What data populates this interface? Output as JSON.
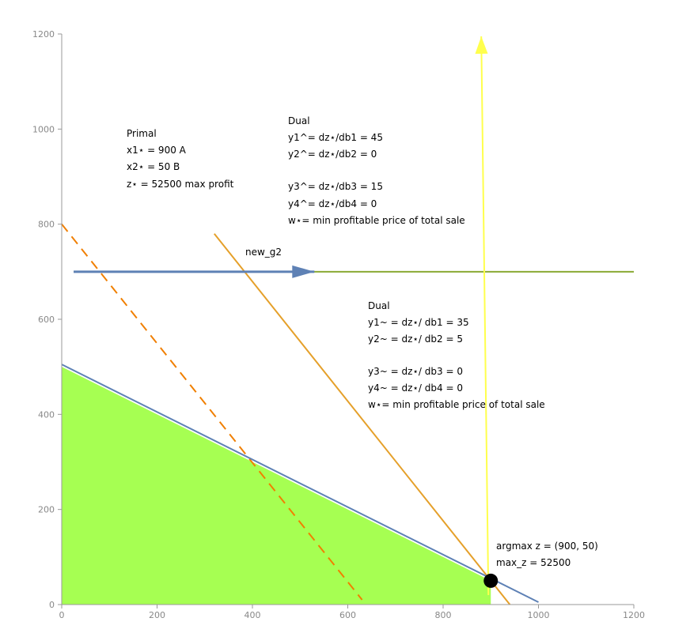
{
  "chart_data": {
    "type": "line",
    "xlim": [
      0,
      1200
    ],
    "ylim": [
      0,
      1200
    ],
    "x_ticks": [
      0,
      200,
      400,
      600,
      800,
      1000,
      1200
    ],
    "y_ticks": [
      0,
      200,
      400,
      600,
      800,
      1000,
      1200
    ],
    "grid": false,
    "feasible_region": {
      "color": "#a6ff52",
      "vertices": [
        [
          0,
          0
        ],
        [
          0,
          500
        ],
        [
          900,
          50
        ],
        [
          900,
          0
        ]
      ]
    },
    "series": [
      {
        "line": "blue-constraint",
        "color": "#5e81b5",
        "style": "solid",
        "points": [
          [
            0,
            505
          ],
          [
            1000,
            5
          ]
        ]
      },
      {
        "line": "orange-dashed",
        "color": "#f07f00",
        "style": "dashed",
        "points": [
          [
            0,
            800
          ],
          [
            630,
            10
          ]
        ]
      },
      {
        "line": "orange-solid",
        "color": "#e5a02a",
        "style": "solid",
        "points": [
          [
            320,
            780
          ],
          [
            940,
            0
          ]
        ]
      },
      {
        "line": "green-horizontal",
        "color": "#8aa934",
        "style": "solid",
        "points": [
          [
            25,
            700
          ],
          [
            1200,
            700
          ]
        ]
      },
      {
        "line": "yellow-gradient",
        "color": "#ffff4d",
        "style": "solid",
        "points": [
          [
            895,
            20
          ],
          [
            880,
            1195
          ]
        ]
      },
      {
        "line": "blue-arrow",
        "color": "#5e81b5",
        "style": "solid",
        "points": [
          [
            25,
            700
          ],
          [
            530,
            700
          ]
        ]
      }
    ],
    "optimum_point": [
      900,
      50
    ],
    "annotations": {
      "primal": {
        "title": "Primal",
        "lines": [
          "x1⋆ = 900 A",
          "x2⋆ = 50 B",
          "z⋆ = 52500 max profit"
        ]
      },
      "dual_top": {
        "title": "Dual",
        "lines": [
          "y1^= dz⋆/db1 = 45",
          "y2^= dz⋆/db2 = 0",
          "",
          "y3^= dz⋆/db3 = 15",
          "y4^= dz⋆/db4 = 0",
          "w⋆= min profitable price of total sale"
        ]
      },
      "dual_mid": {
        "title": "Dual",
        "lines": [
          "y1~ = dz⋆/ db1 = 35",
          "y2~ = dz⋆/ db2 = 5",
          "",
          "y3~ = dz⋆/ db3 = 0",
          "y4~ = dz⋆/ db4 = 0",
          "w⋆= min profitable price of total sale"
        ]
      },
      "new_g2": "new_g2",
      "argmax": "argmax z = (900, 50)",
      "max_z": "max_z = 52500"
    }
  }
}
